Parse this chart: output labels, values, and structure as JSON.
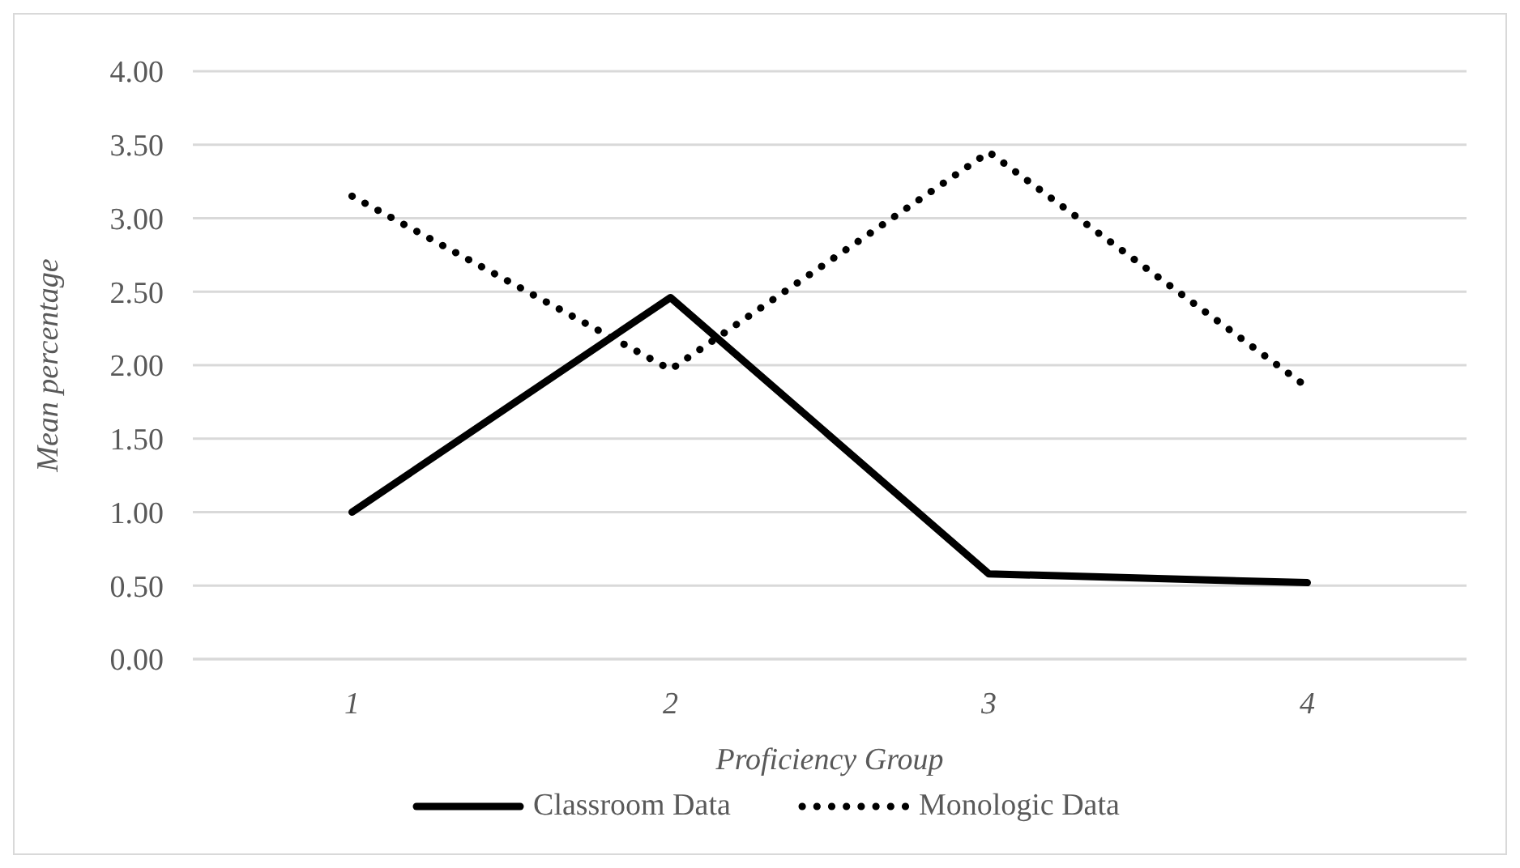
{
  "chart_data": {
    "type": "line",
    "xlabel": "Proficiency Group",
    "ylabel": "Mean percentage",
    "categories": [
      "1",
      "2",
      "3",
      "4"
    ],
    "series": [
      {
        "name": "Classroom Data",
        "color": "#000000",
        "line_style": "solid",
        "values": [
          1.0,
          2.46,
          0.58,
          0.52
        ]
      },
      {
        "name": "Monologic Data",
        "color": "#000000",
        "line_style": "dotted",
        "values": [
          3.15,
          1.97,
          3.45,
          1.85
        ]
      }
    ],
    "ylim": [
      0,
      4
    ],
    "yticks": [
      {
        "value": 0,
        "label": "0.00"
      },
      {
        "value": 0.5,
        "label": "0.50"
      },
      {
        "value": 1,
        "label": "1.00"
      },
      {
        "value": 1.5,
        "label": "1.50"
      },
      {
        "value": 2,
        "label": "2.00"
      },
      {
        "value": 2.5,
        "label": "2.50"
      },
      {
        "value": 3,
        "label": "3.00"
      },
      {
        "value": 3.5,
        "label": "3.50"
      },
      {
        "value": 4,
        "label": "4.00"
      }
    ],
    "grid": "y",
    "legend": "bottom",
    "marker": "none"
  }
}
